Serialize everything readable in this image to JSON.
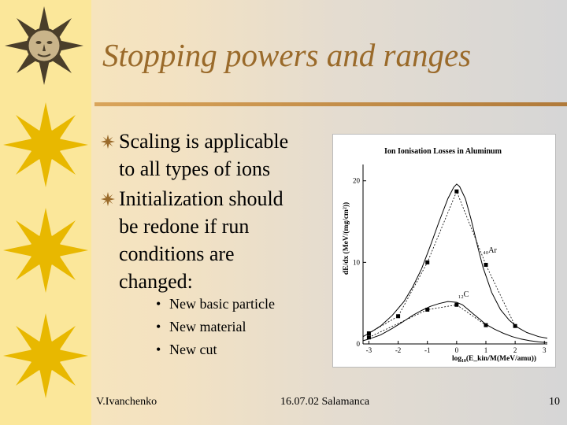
{
  "slide": {
    "title": "Stopping powers and ranges",
    "bullets": [
      {
        "lines": [
          "Scaling is applicable",
          "to all types of ions"
        ]
      },
      {
        "lines": [
          "Initialization should",
          "be redone if run",
          "conditions are",
          "changed:"
        ]
      }
    ],
    "sub_bullets": [
      "New basic particle",
      "New material",
      "New cut"
    ],
    "bullet_glyph": "•",
    "footer": {
      "author": "V.Ivanchenko",
      "event": "16.07.02 Salamanca",
      "page": "10"
    },
    "colors": {
      "title": "#9a6a2a",
      "sidebar": "#fbe79a",
      "sun": "#e8b800"
    },
    "icons": [
      "sun-face-icon",
      "sun-icon",
      "star-bullet-icon"
    ]
  },
  "chart_data": {
    "type": "line",
    "title": "Ion Ionisation Losses in Aluminum",
    "ylabel": "dE/dx (MeV/(mg/cm²))",
    "xlabel": "log₁₀(E_kin/M(MeV/amu))",
    "xlim": [
      -3.2,
      3.1
    ],
    "ylim": [
      0,
      22
    ],
    "x_ticks": [
      "-3",
      "-2",
      "-1",
      "0",
      "1",
      "2",
      "3"
    ],
    "y_ticks": [
      "0",
      "10",
      "20"
    ],
    "annotations": [
      "₄₀Ar",
      "₁₂C"
    ],
    "series": [
      {
        "name": "₄₀Ar",
        "curve": {
          "x": [
            -3.2,
            -3.0,
            -2.6,
            -2.2,
            -1.8,
            -1.5,
            -1.2,
            -0.9,
            -0.6,
            -0.3,
            -0.1,
            0,
            0.1,
            0.3,
            0.5,
            0.7,
            0.9,
            1.2,
            1.5,
            1.8,
            2.1,
            2.4,
            2.8,
            3.1
          ],
          "y": [
            0.9,
            1.3,
            2.2,
            3.5,
            5.2,
            7.0,
            9.2,
            12.0,
            15.0,
            17.8,
            19.2,
            19.6,
            19.3,
            17.8,
            15.2,
            12.2,
            9.4,
            6.3,
            4.2,
            2.9,
            2.0,
            1.4,
            0.9,
            0.7
          ]
        },
        "points": {
          "x": [
            -3,
            -2,
            -1,
            0,
            1,
            2
          ],
          "y": [
            1.3,
            3.4,
            10.0,
            18.7,
            9.7,
            2.2
          ]
        }
      },
      {
        "name": "₁₂C",
        "curve": {
          "x": [
            -3.2,
            -3.0,
            -2.6,
            -2.2,
            -1.8,
            -1.5,
            -1.2,
            -0.9,
            -0.6,
            -0.3,
            0,
            0.2,
            0.4,
            0.6,
            0.8,
            1.0,
            1.3,
            1.6,
            1.9,
            2.2,
            2.5,
            2.8,
            3.1
          ],
          "y": [
            0.4,
            0.6,
            1.1,
            1.9,
            2.8,
            3.5,
            4.1,
            4.6,
            4.95,
            5.2,
            5.1,
            4.8,
            4.2,
            3.6,
            3.0,
            2.4,
            1.8,
            1.3,
            0.9,
            0.6,
            0.4,
            0.25,
            0.15
          ]
        },
        "points": {
          "x": [
            -3,
            -1,
            0,
            1
          ],
          "y": [
            0.8,
            4.2,
            4.8,
            2.3
          ]
        }
      }
    ]
  }
}
